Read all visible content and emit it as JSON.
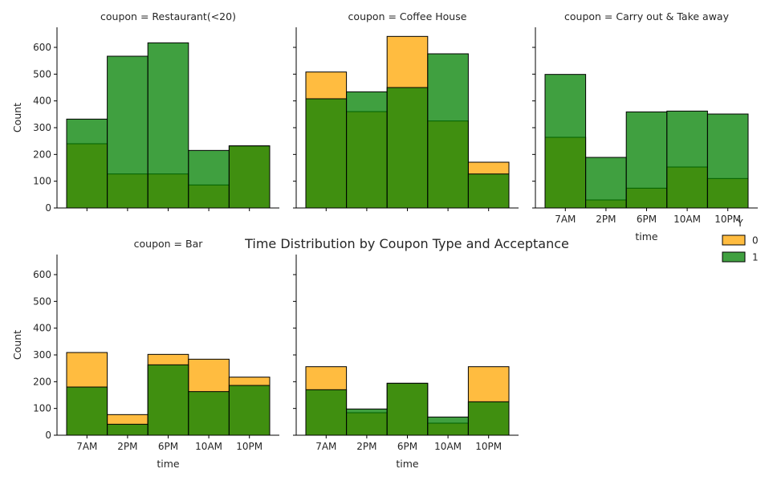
{
  "figure": {
    "title": "Time Distribution by Coupon Type and Acceptance"
  },
  "legend": {
    "title": "Y",
    "placement": "right",
    "entries": [
      {
        "label": "0",
        "color": "#FFA500"
      },
      {
        "label": "1",
        "color": "#008000"
      }
    ]
  },
  "colors": {
    "y0": "#FFA500",
    "y1": "#008000",
    "edge": "#000000",
    "alpha": 0.75
  },
  "chart_data": [
    {
      "type": "bar",
      "title": "coupon = Restaurant(<20)",
      "categories": [
        "7AM",
        "2PM",
        "6PM",
        "10AM",
        "10PM"
      ],
      "series": [
        {
          "name": "0",
          "values": [
            240,
            127,
            127,
            86,
            232
          ]
        },
        {
          "name": "1",
          "values": [
            332,
            567,
            617,
            215,
            232
          ]
        }
      ],
      "xlabel": "",
      "ylabel": "Count",
      "ylim": [
        0,
        675
      ],
      "yticks": [
        0,
        100,
        200,
        300,
        400,
        500,
        600
      ],
      "show_xticklabels": false,
      "show_yticklabels": true,
      "grid": false
    },
    {
      "type": "bar",
      "title": "coupon = Coffee House",
      "categories": [
        "7AM",
        "2PM",
        "6PM",
        "10AM",
        "10PM"
      ],
      "series": [
        {
          "name": "0",
          "values": [
            508,
            360,
            641,
            325,
            171
          ]
        },
        {
          "name": "1",
          "values": [
            408,
            434,
            450,
            576,
            127
          ]
        }
      ],
      "xlabel": "",
      "ylabel": "",
      "ylim": [
        0,
        675
      ],
      "yticks": [
        0,
        100,
        200,
        300,
        400,
        500,
        600
      ],
      "show_xticklabels": false,
      "show_yticklabels": false,
      "grid": false
    },
    {
      "type": "bar",
      "title": "coupon = Carry out & Take away",
      "categories": [
        "7AM",
        "2PM",
        "6PM",
        "10AM",
        "10PM"
      ],
      "series": [
        {
          "name": "0",
          "values": [
            264,
            30,
            74,
            153,
            110
          ]
        },
        {
          "name": "1",
          "values": [
            499,
            189,
            359,
            362,
            351
          ]
        }
      ],
      "xlabel": "time",
      "ylabel": "",
      "ylim": [
        0,
        675
      ],
      "yticks": [
        0,
        100,
        200,
        300,
        400,
        500,
        600
      ],
      "show_xticklabels": true,
      "show_yticklabels": false,
      "grid": false
    },
    {
      "type": "bar",
      "title": "coupon = Bar",
      "categories": [
        "7AM",
        "2PM",
        "6PM",
        "10AM",
        "10PM"
      ],
      "series": [
        {
          "name": "0",
          "values": [
            309,
            77,
            302,
            284,
            217
          ]
        },
        {
          "name": "1",
          "values": [
            180,
            41,
            263,
            163,
            186
          ]
        }
      ],
      "xlabel": "time",
      "ylabel": "Count",
      "ylim": [
        0,
        675
      ],
      "yticks": [
        0,
        100,
        200,
        300,
        400,
        500,
        600
      ],
      "show_xticklabels": true,
      "show_yticklabels": true,
      "grid": false
    },
    {
      "type": "bar",
      "title": "",
      "categories": [
        "7AM",
        "2PM",
        "6PM",
        "10AM",
        "10PM"
      ],
      "series": [
        {
          "name": "0",
          "values": [
            256,
            84,
            194,
            45,
            256
          ]
        },
        {
          "name": "1",
          "values": [
            170,
            98,
            194,
            68,
            125
          ]
        }
      ],
      "xlabel": "time",
      "ylabel": "",
      "ylim": [
        0,
        675
      ],
      "yticks": [
        0,
        100,
        200,
        300,
        400,
        500,
        600
      ],
      "show_xticklabels": true,
      "show_yticklabels": false,
      "grid": false
    }
  ]
}
